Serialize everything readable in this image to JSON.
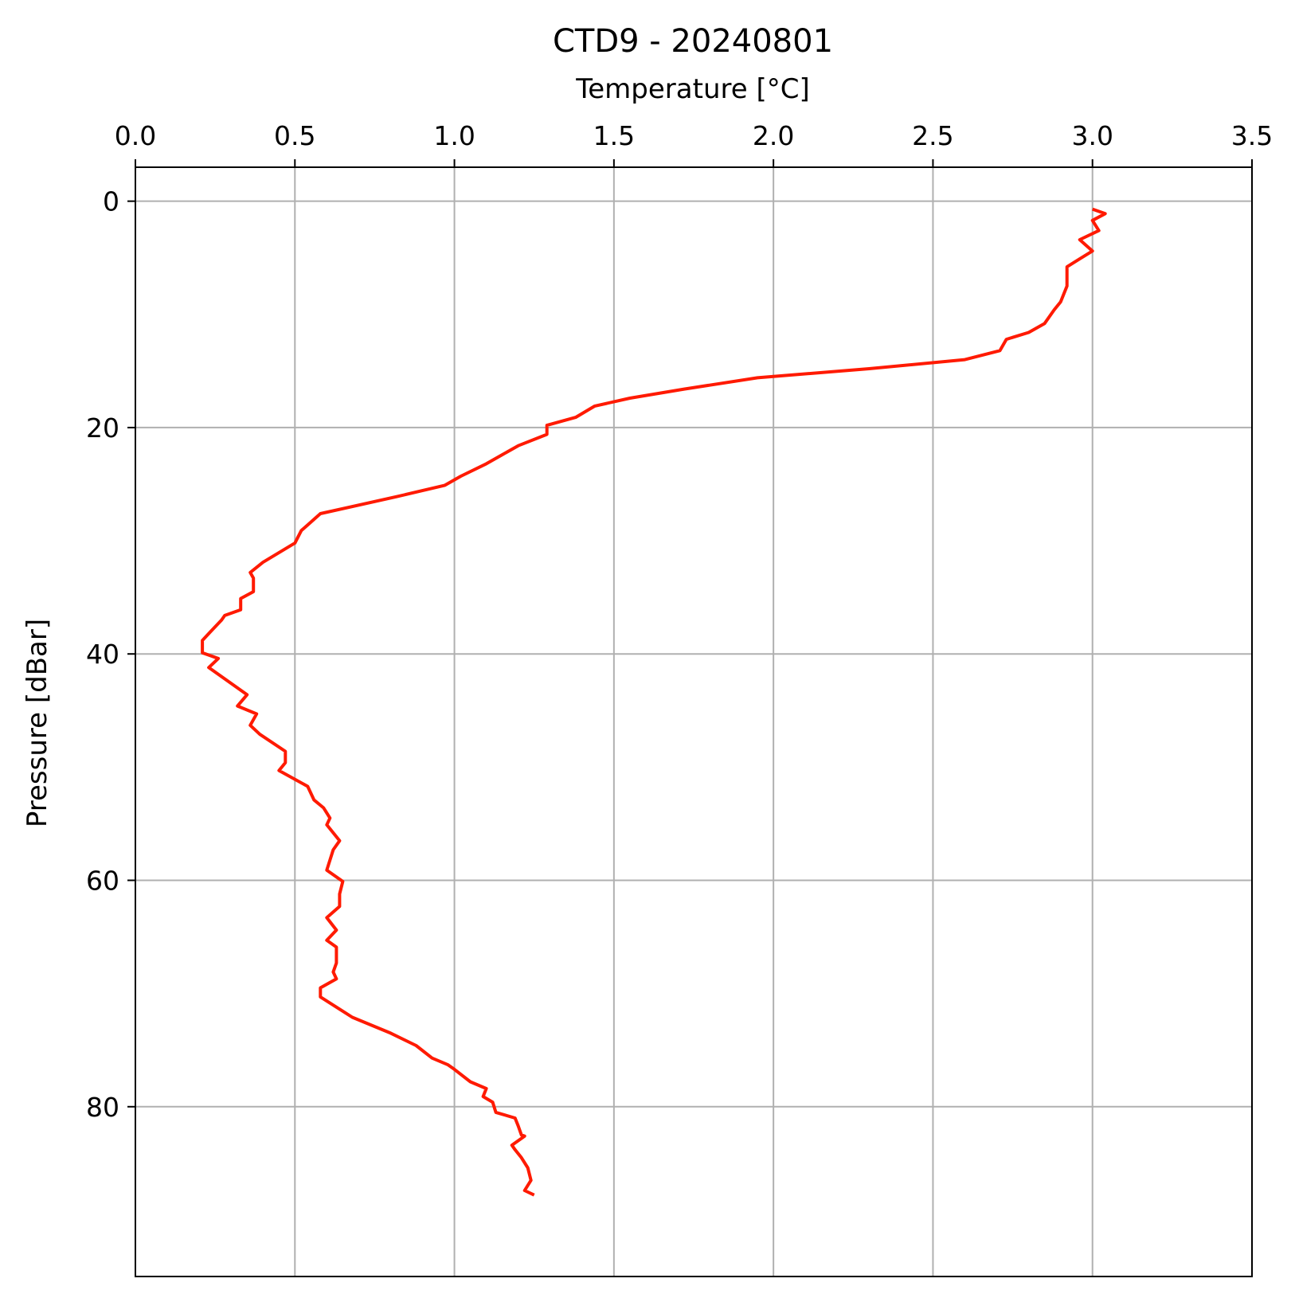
{
  "chart_data": {
    "type": "line",
    "title": "CTD9 - 20240801",
    "xlabel": "Temperature [°C]",
    "ylabel": "Pressure [dBar]",
    "x_axis_position": "top",
    "y_axis_inverted": true,
    "xlim": [
      0.0,
      3.5
    ],
    "ylim": [
      95,
      -3
    ],
    "xticks": [
      "0.0",
      "0.5",
      "1.0",
      "1.5",
      "2.0",
      "2.5",
      "3.0",
      "3.5"
    ],
    "yticks": [
      "0",
      "20",
      "40",
      "60",
      "80"
    ],
    "grid": true,
    "line_color": "#ff1a00",
    "grid_color": "#b0b0b0",
    "series": [
      {
        "points": [
          [
            3.0,
            0.7
          ],
          [
            3.04,
            1.1
          ],
          [
            3.0,
            1.7
          ],
          [
            3.02,
            2.6
          ],
          [
            2.96,
            3.4
          ],
          [
            3.0,
            4.4
          ],
          [
            2.96,
            5.1
          ],
          [
            2.92,
            5.8
          ],
          [
            2.92,
            7.5
          ],
          [
            2.9,
            8.9
          ],
          [
            2.88,
            9.6
          ],
          [
            2.85,
            10.8
          ],
          [
            2.8,
            11.6
          ],
          [
            2.73,
            12.2
          ],
          [
            2.71,
            13.2
          ],
          [
            2.6,
            14.0
          ],
          [
            2.3,
            14.8
          ],
          [
            1.95,
            15.6
          ],
          [
            1.72,
            16.6
          ],
          [
            1.55,
            17.4
          ],
          [
            1.44,
            18.1
          ],
          [
            1.38,
            19.1
          ],
          [
            1.29,
            19.8
          ],
          [
            1.29,
            20.6
          ],
          [
            1.2,
            21.6
          ],
          [
            1.15,
            22.4
          ],
          [
            1.1,
            23.2
          ],
          [
            1.02,
            24.3
          ],
          [
            0.97,
            25.1
          ],
          [
            0.82,
            26.1
          ],
          [
            0.58,
            27.6
          ],
          [
            0.54,
            28.6
          ],
          [
            0.52,
            29.1
          ],
          [
            0.5,
            30.2
          ],
          [
            0.4,
            31.9
          ],
          [
            0.36,
            32.8
          ],
          [
            0.37,
            33.3
          ],
          [
            0.37,
            34.5
          ],
          [
            0.33,
            35.1
          ],
          [
            0.33,
            36.1
          ],
          [
            0.28,
            36.6
          ],
          [
            0.27,
            37.0
          ],
          [
            0.24,
            37.9
          ],
          [
            0.21,
            38.8
          ],
          [
            0.21,
            39.9
          ],
          [
            0.26,
            40.4
          ],
          [
            0.23,
            41.2
          ],
          [
            0.35,
            43.6
          ],
          [
            0.32,
            44.6
          ],
          [
            0.38,
            45.3
          ],
          [
            0.36,
            46.3
          ],
          [
            0.39,
            47.1
          ],
          [
            0.47,
            48.6
          ],
          [
            0.47,
            49.6
          ],
          [
            0.45,
            50.3
          ],
          [
            0.54,
            51.7
          ],
          [
            0.56,
            52.9
          ],
          [
            0.59,
            53.6
          ],
          [
            0.61,
            54.5
          ],
          [
            0.6,
            55.1
          ],
          [
            0.64,
            56.5
          ],
          [
            0.62,
            57.3
          ],
          [
            0.6,
            59.1
          ],
          [
            0.65,
            60.1
          ],
          [
            0.64,
            61.2
          ],
          [
            0.64,
            62.3
          ],
          [
            0.6,
            63.3
          ],
          [
            0.63,
            64.4
          ],
          [
            0.6,
            65.3
          ],
          [
            0.63,
            65.9
          ],
          [
            0.63,
            67.3
          ],
          [
            0.62,
            68.1
          ],
          [
            0.63,
            68.7
          ],
          [
            0.58,
            69.5
          ],
          [
            0.58,
            70.3
          ],
          [
            0.68,
            72.1
          ],
          [
            0.8,
            73.5
          ],
          [
            0.88,
            74.6
          ],
          [
            0.93,
            75.7
          ],
          [
            0.98,
            76.3
          ],
          [
            1.0,
            76.7
          ],
          [
            1.05,
            77.8
          ],
          [
            1.1,
            78.4
          ],
          [
            1.09,
            79.1
          ],
          [
            1.12,
            79.6
          ],
          [
            1.13,
            80.5
          ],
          [
            1.19,
            81.0
          ],
          [
            1.2,
            81.7
          ],
          [
            1.21,
            82.5
          ],
          [
            1.22,
            82.6
          ],
          [
            1.18,
            83.4
          ],
          [
            1.19,
            83.8
          ],
          [
            1.21,
            84.5
          ],
          [
            1.23,
            85.4
          ],
          [
            1.24,
            86.5
          ],
          [
            1.22,
            87.4
          ],
          [
            1.25,
            87.8
          ]
        ]
      }
    ]
  }
}
